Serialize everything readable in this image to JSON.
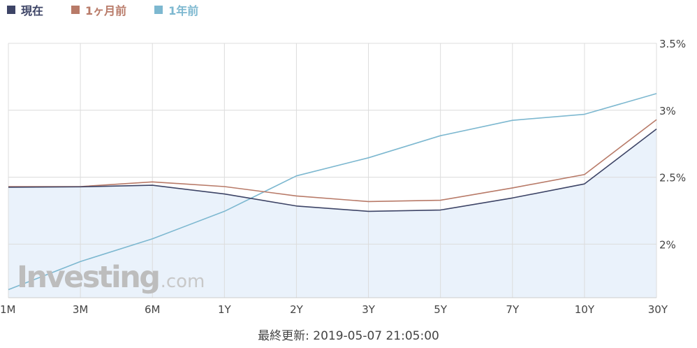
{
  "legend": [
    {
      "label": "現在",
      "color": "#3d4466"
    },
    {
      "label": "1ヶ月前",
      "color": "#b87a68"
    },
    {
      "label": "1年前",
      "color": "#7db8d0"
    }
  ],
  "watermark": {
    "main": "Investing",
    "suffix": ".com"
  },
  "footer": "最終更新: 2019-05-07 21:05:00",
  "colors": {
    "area_fill": "#eaf2fb",
    "grid": "#dcdcdc"
  },
  "chart_data": {
    "type": "line",
    "categories": [
      "1M",
      "3M",
      "6M",
      "1Y",
      "2Y",
      "3Y",
      "5Y",
      "7Y",
      "10Y",
      "30Y"
    ],
    "series": [
      {
        "name": "現在",
        "color": "#3d4466",
        "values": [
          2.425,
          2.428,
          2.44,
          2.375,
          2.285,
          2.245,
          2.255,
          2.345,
          2.45,
          2.86
        ],
        "fill": true
      },
      {
        "name": "1ヶ月前",
        "color": "#b87a68",
        "values": [
          2.43,
          2.43,
          2.465,
          2.43,
          2.36,
          2.318,
          2.328,
          2.42,
          2.52,
          2.93
        ],
        "fill": false
      },
      {
        "name": "1年前",
        "color": "#7db8d0",
        "values": [
          1.66,
          1.87,
          2.04,
          2.245,
          2.51,
          2.645,
          2.81,
          2.925,
          2.97,
          3.125
        ],
        "fill": false
      }
    ],
    "y_ticks": [
      {
        "value": 2.0,
        "label": "2%"
      },
      {
        "value": 2.5,
        "label": "2.5%"
      },
      {
        "value": 3.0,
        "label": "3%"
      },
      {
        "value": 3.5,
        "label": "3.5%"
      }
    ],
    "ylim": [
      1.6,
      3.5
    ],
    "y_axis_position": "right",
    "grid": true
  }
}
